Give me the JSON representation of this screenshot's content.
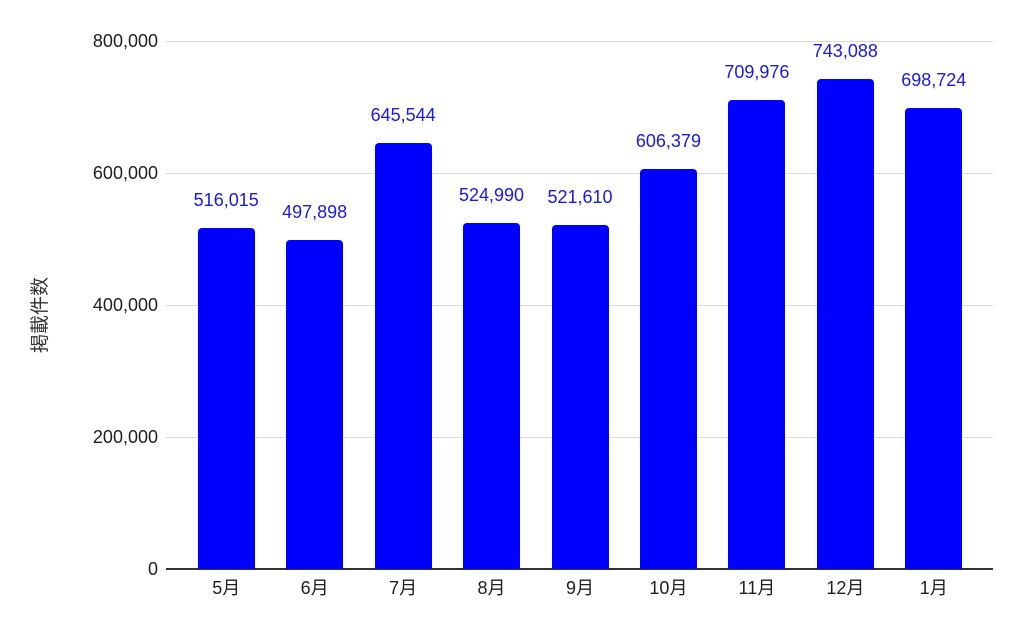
{
  "chart_data": {
    "type": "bar",
    "title": "",
    "categories": [
      "5月",
      "6月",
      "7月",
      "8月",
      "9月",
      "10月",
      "11月",
      "12月",
      "1月"
    ],
    "values": [
      516015,
      497898,
      645544,
      524990,
      521610,
      606379,
      709976,
      743088,
      698724
    ],
    "value_labels": [
      "516,015",
      "497,898",
      "645,544",
      "524,990",
      "521,610",
      "606,379",
      "709,976",
      "743,088",
      "698,724"
    ],
    "xlabel": "",
    "ylabel": "掲載件数",
    "ylim": [
      0,
      800000
    ],
    "yticks": [
      {
        "value": 0,
        "label": "0"
      },
      {
        "value": 200000,
        "label": "200,000"
      },
      {
        "value": 400000,
        "label": "400,000"
      },
      {
        "value": 600000,
        "label": "600,000"
      },
      {
        "value": 800000,
        "label": "800,000"
      }
    ],
    "grid": "horizontal",
    "legend": "none",
    "colors": {
      "bar": "#0000ff",
      "value_label": "#1a1ae8",
      "gridline": "#dadada",
      "axis_line": "#333333",
      "tick_label": "#1f1f1f",
      "axis_title": "#333333",
      "background": "#ffffff"
    }
  }
}
